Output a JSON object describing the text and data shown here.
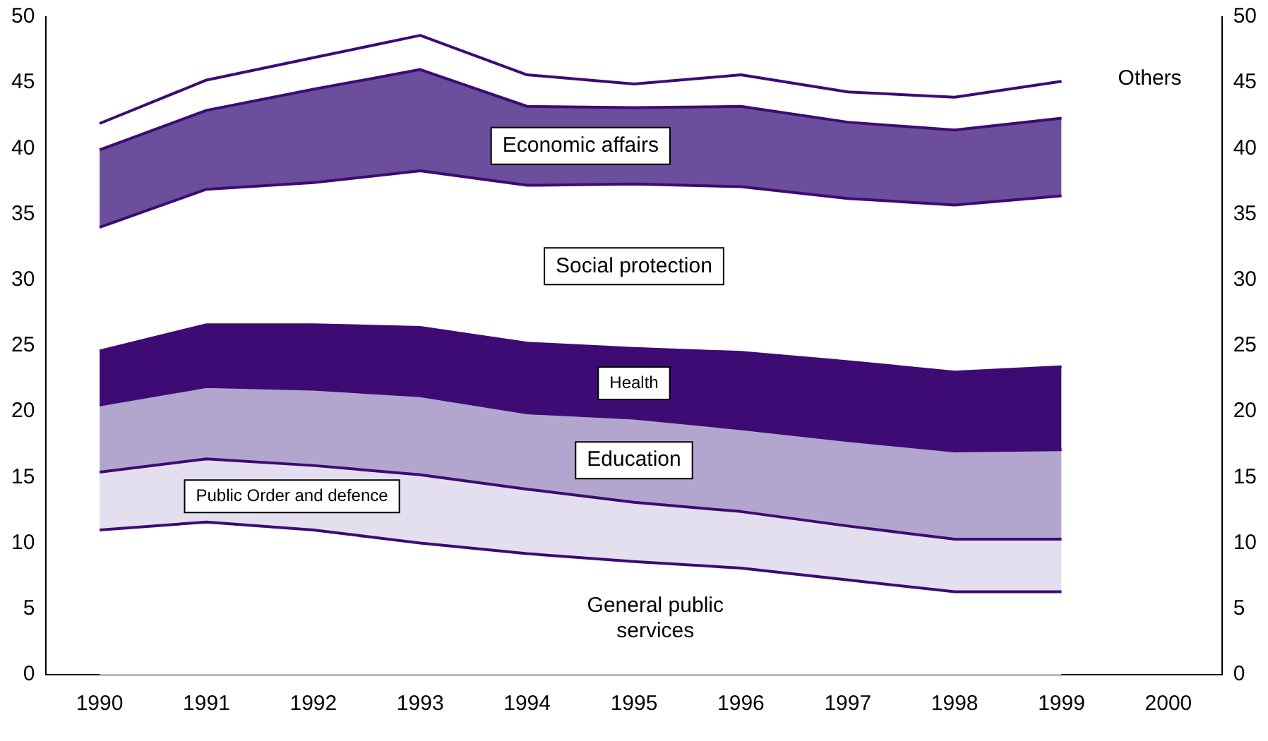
{
  "chart_data": {
    "type": "area",
    "stacked": true,
    "categories": [
      "1990",
      "1991",
      "1992",
      "1993",
      "1994",
      "1995",
      "1996",
      "1997",
      "1998",
      "1999",
      "2000"
    ],
    "series": [
      {
        "name": "General public services",
        "color": "#ffffff",
        "values": [
          11.0,
          11.6,
          11.0,
          10.0,
          9.2,
          8.6,
          8.1,
          7.2,
          6.3,
          6.3,
          null
        ]
      },
      {
        "name": "Public Order and defence",
        "color": "#e4dfef",
        "values": [
          4.4,
          4.8,
          4.9,
          5.2,
          4.9,
          4.5,
          4.3,
          4.1,
          4.0,
          4.0,
          null
        ]
      },
      {
        "name": "Education",
        "color": "#b2a6cf",
        "values": [
          5.1,
          5.5,
          5.8,
          6.0,
          5.8,
          6.4,
          6.3,
          6.5,
          6.7,
          6.8,
          null
        ]
      },
      {
        "name": "Health",
        "color": "#3d0b73",
        "values": [
          4.1,
          4.7,
          4.9,
          5.2,
          5.3,
          5.3,
          5.8,
          6.0,
          6.0,
          6.3,
          null
        ]
      },
      {
        "name": "Social protection",
        "color": "#ffffff",
        "values": [
          9.4,
          10.3,
          10.8,
          11.9,
          12.0,
          12.5,
          12.6,
          12.4,
          12.7,
          13.0,
          null
        ]
      },
      {
        "name": "Economic affairs",
        "color": "#6b4e9c",
        "values": [
          5.9,
          6.0,
          7.1,
          7.7,
          6.0,
          5.8,
          6.1,
          5.8,
          5.7,
          5.9,
          null
        ]
      },
      {
        "name": "Others",
        "color": "#ffffff",
        "values": [
          2.0,
          2.3,
          2.4,
          2.6,
          2.4,
          1.8,
          2.4,
          2.3,
          2.5,
          2.8,
          null
        ]
      }
    ],
    "ylim": [
      0,
      50
    ],
    "yticks": [
      0,
      5,
      10,
      15,
      20,
      25,
      30,
      35,
      40,
      45,
      50
    ],
    "y2lim": [
      0,
      50
    ],
    "y2ticks": [
      0,
      5,
      10,
      15,
      20,
      25,
      30,
      35,
      40,
      45,
      50
    ],
    "grid": false,
    "legend": false
  }
}
